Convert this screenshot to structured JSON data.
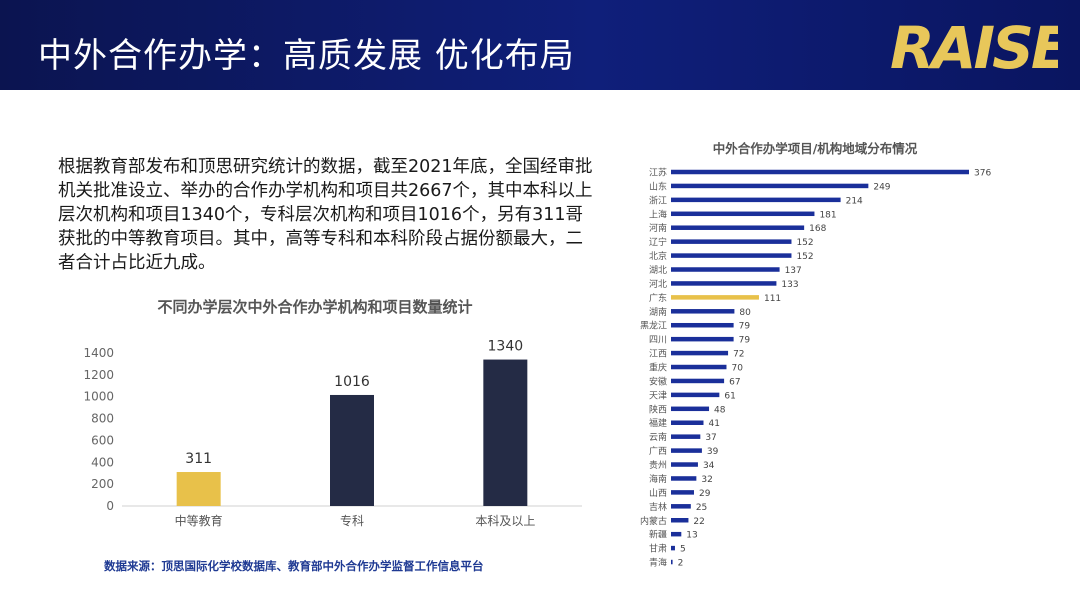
{
  "header": {
    "title": "中外合作办学：高质发展 优化布局",
    "logo_text": "RAISE",
    "colors": {
      "background": "#0f1f7a",
      "logo": "#e8c75a"
    }
  },
  "intro_text": "根据教育部发布和顶思研究统计的数据，截至2021年底，全国经审批机关批准设立、举办的合作办学机构和项目共2667个，其中本科以上层次机构和项目1340个，专科层次机构和项目1016个，另有311哥获批的中等教育项目。其中，高等专科和本科阶段占据份额最大，二者合计占比近九成。",
  "source_text": "数据来源：顶思国际化学校数据库、教育部中外合作办学监督工作信息平台",
  "chart_data": [
    {
      "type": "bar",
      "title": "不同办学层次中外合作办学机构和项目数量统计",
      "categories": [
        "中等教育",
        "专科",
        "本科及以上"
      ],
      "values": [
        311,
        1016,
        1340
      ],
      "ylim": [
        0,
        1400
      ],
      "yticks": [
        0,
        200,
        400,
        600,
        800,
        1000,
        1200,
        1400
      ],
      "grid": false,
      "colors": [
        "#e8c14a",
        "#242b45",
        "#242b45"
      ]
    },
    {
      "type": "bar",
      "orientation": "horizontal",
      "title": "中外合作办学项目/机构地域分布情况",
      "categories": [
        "江苏",
        "山东",
        "浙江",
        "上海",
        "河南",
        "辽宁",
        "北京",
        "湖北",
        "河北",
        "广东",
        "湖南",
        "黑龙江",
        "四川",
        "江西",
        "重庆",
        "安徽",
        "天津",
        "陕西",
        "福建",
        "云南",
        "广西",
        "贵州",
        "海南",
        "山西",
        "吉林",
        "内蒙古",
        "新疆",
        "甘肃",
        "青海"
      ],
      "values": [
        376,
        249,
        214,
        181,
        168,
        152,
        152,
        137,
        133,
        111,
        80,
        79,
        79,
        72,
        70,
        67,
        61,
        48,
        41,
        37,
        39,
        34,
        32,
        29,
        25,
        22,
        13,
        5,
        2
      ],
      "highlight": "广东",
      "colors": {
        "bar": "#1a2f9a",
        "highlight": "#e8c14a"
      }
    }
  ]
}
